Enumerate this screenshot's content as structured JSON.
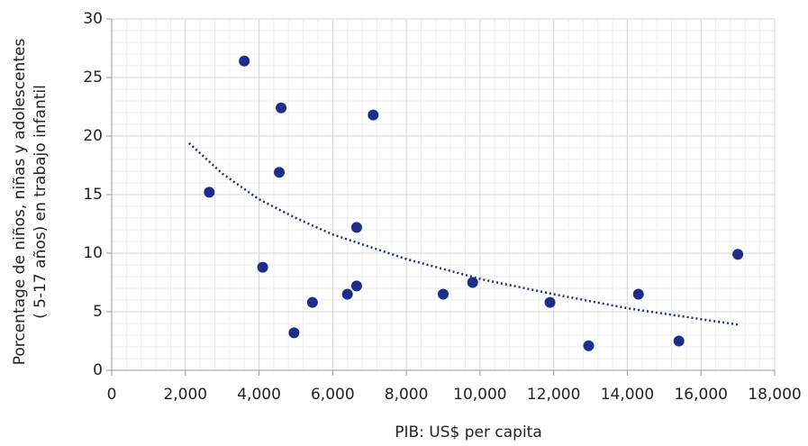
{
  "chart_data": {
    "type": "scatter",
    "xlabel": "PIB: US$ per capita",
    "ylabel": [
      "Porcentage de niños, niñas  y adolescentes",
      "( 5-17 años) en trabajo infantil"
    ],
    "x": [
      2650,
      3600,
      4100,
      4550,
      4600,
      4950,
      5450,
      6400,
      6650,
      6650,
      7100,
      9000,
      9800,
      11900,
      12950,
      14300,
      15400,
      17000
    ],
    "values": [
      15.2,
      26.4,
      8.8,
      16.9,
      22.4,
      3.2,
      5.8,
      6.5,
      12.2,
      7.2,
      21.8,
      6.5,
      7.5,
      5.8,
      2.1,
      6.5,
      2.5,
      9.9
    ],
    "color": "#1c2d8c",
    "trendline": {
      "x": [
        2100,
        3000,
        4000,
        5000,
        6000,
        8000,
        10000,
        12000,
        14000,
        17000
      ],
      "y": [
        19.4,
        16.8,
        14.6,
        13.0,
        11.6,
        9.5,
        7.8,
        6.5,
        5.3,
        3.9
      ]
    },
    "xlim": [
      0,
      18000
    ],
    "xticks": [
      0,
      {
        "value": 2000,
        "label": "2,000"
      },
      {
        "value": 4000,
        "label": "4,000"
      },
      {
        "value": 6000,
        "label": "6,000"
      },
      {
        "value": 8000,
        "label": "8,000"
      },
      {
        "value": 10000,
        "label": "10,000"
      },
      {
        "value": 12000,
        "label": "12,000"
      },
      {
        "value": 14000,
        "label": "14,000"
      },
      {
        "value": 16000,
        "label": "16,000"
      },
      {
        "value": 18000,
        "label": "18,000"
      }
    ],
    "ylim": [
      0,
      30
    ],
    "yticks": [
      0,
      5,
      10,
      15,
      20,
      25,
      30
    ],
    "grid": true
  }
}
